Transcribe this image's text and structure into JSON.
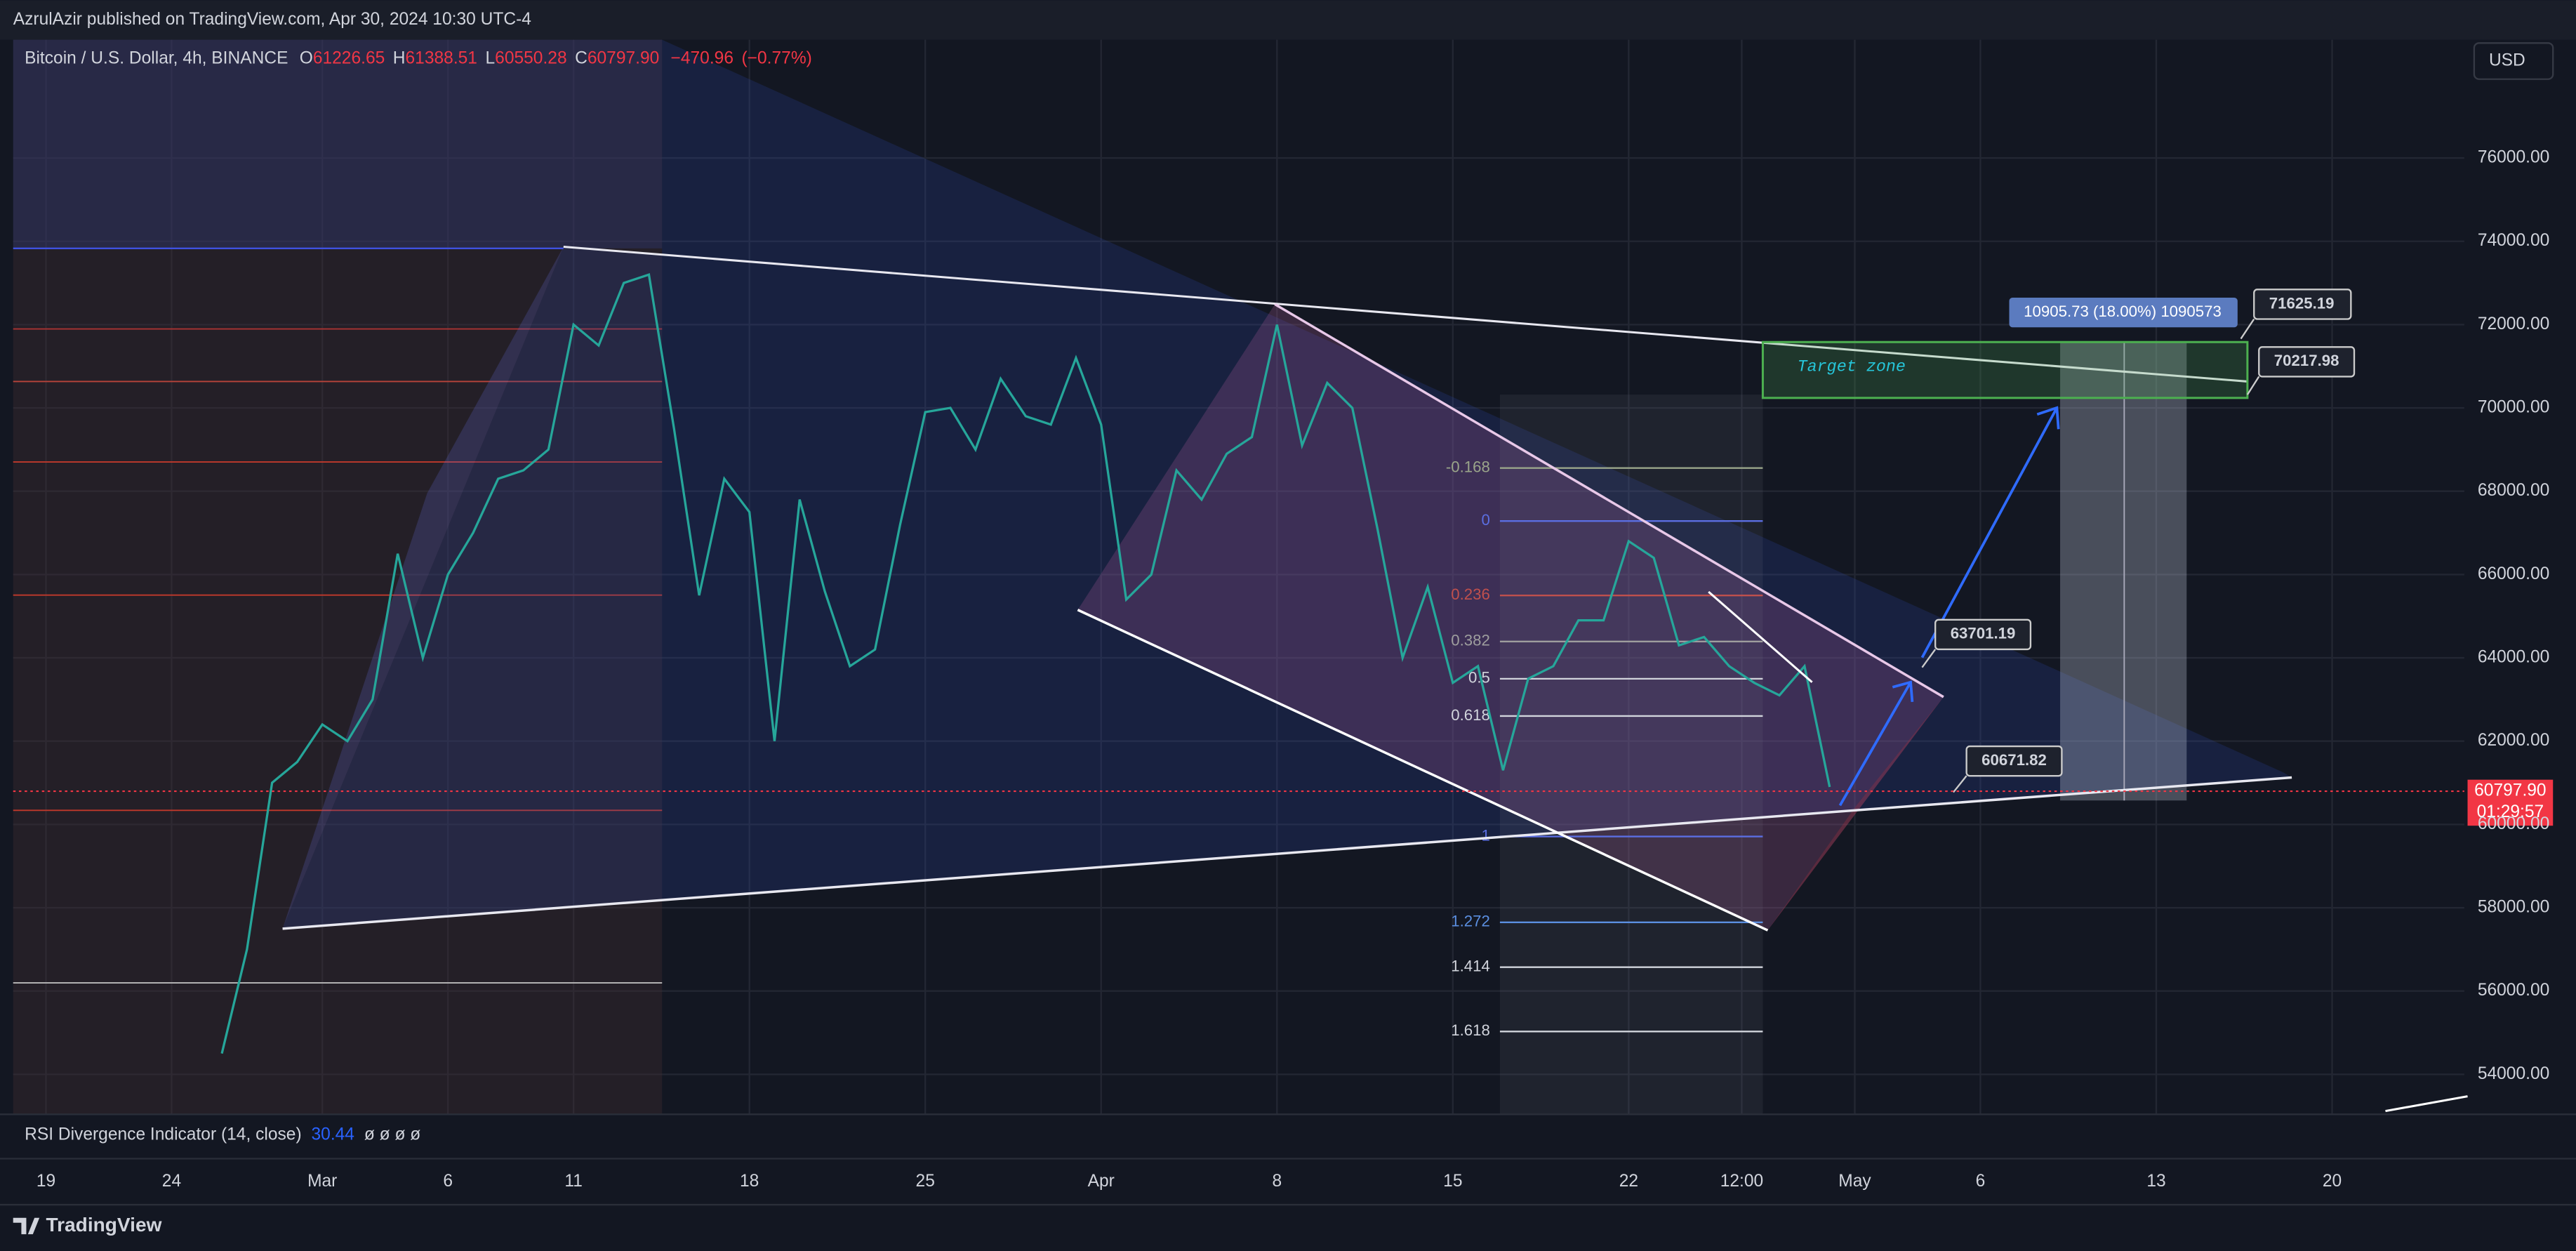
{
  "header": {
    "publisher": "AzrulAzir published on TradingView.com, Apr 30, 2024 10:30 UTC-4"
  },
  "chart_data": {
    "type": "line",
    "title": "Bitcoin / U.S. Dollar, 4h, BINANCE",
    "ohlc_keys": [
      "O",
      "H",
      "L",
      "C"
    ],
    "ohlc": {
      "open": 61226.65,
      "high": 61388.51,
      "low": 60550.28,
      "close": {
        "value": 60797.9,
        "label": "60797.90"
      },
      "change": {
        "value": -470.96,
        "label": "−470.96"
      },
      "change_pct": {
        "value": -0.77,
        "label": "(−0.77%)"
      }
    },
    "currency": "USD",
    "color": "#26a69a",
    "x": [
      "2024-02-26",
      "2024-02-27",
      "2024-02-28",
      "2024-02-29",
      "2024-03-01",
      "2024-03-02",
      "2024-03-03",
      "2024-03-04",
      "2024-03-05",
      "2024-03-06",
      "2024-03-07",
      "2024-03-08",
      "2024-03-09",
      "2024-03-10",
      "2024-03-11",
      "2024-03-12",
      "2024-03-13",
      "2024-03-14",
      "2024-03-15",
      "2024-03-16",
      "2024-03-17",
      "2024-03-18",
      "2024-03-19",
      "2024-03-20",
      "2024-03-21",
      "2024-03-22",
      "2024-03-23",
      "2024-03-24",
      "2024-03-25",
      "2024-03-26",
      "2024-03-27",
      "2024-03-28",
      "2024-03-29",
      "2024-03-30",
      "2024-03-31",
      "2024-04-01",
      "2024-04-02",
      "2024-04-03",
      "2024-04-04",
      "2024-04-05",
      "2024-04-06",
      "2024-04-07",
      "2024-04-08",
      "2024-04-09",
      "2024-04-10",
      "2024-04-11",
      "2024-04-12",
      "2024-04-13",
      "2024-04-14",
      "2024-04-15",
      "2024-04-16",
      "2024-04-17",
      "2024-04-18",
      "2024-04-19",
      "2024-04-20",
      "2024-04-21",
      "2024-04-22",
      "2024-04-23",
      "2024-04-24",
      "2024-04-25",
      "2024-04-26",
      "2024-04-27",
      "2024-04-28",
      "2024-04-29",
      "2024-04-30"
    ],
    "values": [
      54500,
      57000,
      61000,
      61500,
      62400,
      62000,
      63000,
      66500,
      64000,
      66000,
      67000,
      68300,
      68500,
      69000,
      72000,
      71500,
      73000,
      73200,
      69500,
      65500,
      68300,
      67500,
      62000,
      67800,
      65600,
      63800,
      64200,
      67200,
      69900,
      70000,
      69000,
      70700,
      69800,
      69600,
      71200,
      69600,
      65400,
      66000,
      68500,
      67800,
      68900,
      69300,
      72000,
      69100,
      70600,
      70000,
      67100,
      64000,
      65700,
      63400,
      63800,
      61300,
      63500,
      63800,
      64900,
      64900,
      66800,
      66400,
      64300,
      64500,
      63800,
      63400,
      63100,
      63800,
      60900
    ],
    "xlim": [
      "2024-02-18",
      "2024-05-25"
    ],
    "xticks": [
      {
        "value": "2024-02-19",
        "label": "19"
      },
      {
        "value": "2024-02-24",
        "label": "24"
      },
      {
        "value": "2024-03-01",
        "label": "Mar"
      },
      {
        "value": "2024-03-06",
        "label": "6"
      },
      {
        "value": "2024-03-11",
        "label": "11"
      },
      {
        "value": "2024-03-18",
        "label": "18"
      },
      {
        "value": "2024-03-25",
        "label": "25"
      },
      {
        "value": "2024-04-01",
        "label": "Apr"
      },
      {
        "value": "2024-04-08",
        "label": "8"
      },
      {
        "value": "2024-04-15",
        "label": "15"
      },
      {
        "value": "2024-04-22",
        "label": "22"
      },
      {
        "value": "2024-04-26T12:00",
        "label": "12:00"
      },
      {
        "value": "2024-05-01",
        "label": "May"
      },
      {
        "value": "2024-05-06",
        "label": "6"
      },
      {
        "value": "2024-05-13",
        "label": "13"
      },
      {
        "value": "2024-05-20",
        "label": "20"
      }
    ],
    "ylim": [
      53040,
      78840
    ],
    "yticks": [
      {
        "value": 54000,
        "label": "54000.00"
      },
      {
        "value": 56000,
        "label": "56000.00"
      },
      {
        "value": 58000,
        "label": "58000.00"
      },
      {
        "value": 60000,
        "label": "60000.00"
      },
      {
        "value": 62000,
        "label": "62000.00"
      },
      {
        "value": 64000,
        "label": "64000.00"
      },
      {
        "value": 66000,
        "label": "66000.00"
      },
      {
        "value": 68000,
        "label": "68000.00"
      },
      {
        "value": 70000,
        "label": "70000.00"
      },
      {
        "value": 72000,
        "label": "72000.00"
      },
      {
        "value": 74000,
        "label": "74000.00"
      },
      {
        "value": 76000,
        "label": "76000.00"
      }
    ],
    "grid": true,
    "last_price": {
      "value": 60797.9,
      "label": "60797.90"
    },
    "countdown": "01:29:57",
    "fib": {
      "range": [
        67285,
        59710
      ],
      "levels": [
        -0.168,
        0,
        0.236,
        0.382,
        0.5,
        0.618,
        1,
        1.272,
        1.414,
        1.618
      ],
      "colors": [
        "#9aa58a",
        "#5b6ee1",
        "#c0504d",
        "#9e9e9e",
        "#d1d4dc",
        "#d1d4dc",
        "#5b6ee1",
        "#5b8fe1",
        "#d1d4dc",
        "#d1d4dc"
      ]
    },
    "target_zone": "Target zone",
    "measure": "10905.73 (18.00%) 1090573",
    "price_labels": [
      71625.19,
      70217.98,
      63701.19,
      60671.82
    ],
    "indicator": "RSI Divergence Indicator (14, close)",
    "indicator_value": 30.44,
    "indicator_placeholders": "ø ø ø ø"
  },
  "footer": {
    "brand": "TradingView"
  }
}
